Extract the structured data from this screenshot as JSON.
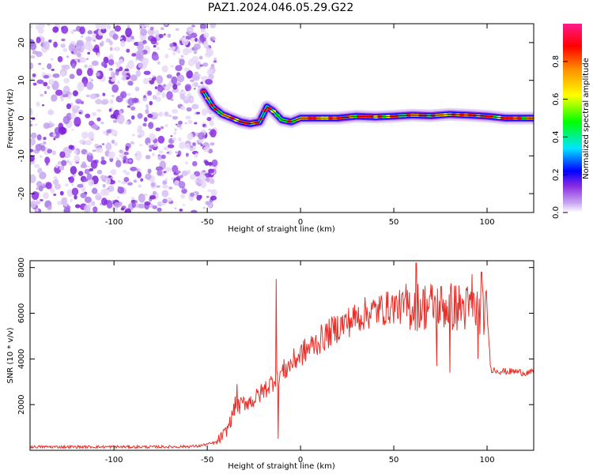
{
  "figure_title": "PAZ1.2024.046.05.29.G22",
  "chart_data": [
    {
      "type": "heatmap",
      "title": "",
      "xlabel": "Height of straight line (km)",
      "ylabel": "Frequency (Hz)",
      "xlim": [
        -145,
        125
      ],
      "ylim": [
        -25,
        25
      ],
      "xticks": [
        -100,
        -50,
        0,
        50,
        100
      ],
      "yticks": [
        -20,
        -10,
        0,
        10,
        20
      ],
      "colorbar": {
        "label": "Normalized spectral amplitude",
        "ticks": [
          0.0,
          0.2,
          0.4,
          0.6,
          0.8
        ],
        "range": [
          0,
          1
        ],
        "colormap": [
          "#ffffff",
          "#c9a7f0",
          "#8a2be2",
          "#0000ff",
          "#00e5ff",
          "#00ff00",
          "#ffff00",
          "#ff8c00",
          "#ff0000",
          "#ff1a8c"
        ]
      },
      "noise_region_x": [
        -145,
        -48
      ],
      "tonal_ridge": {
        "x": [
          -52,
          -47,
          -42,
          -37,
          -32,
          -27,
          -22,
          -18,
          -15,
          -10,
          -5,
          0,
          10,
          20,
          30,
          40,
          50,
          60,
          70,
          80,
          90,
          100,
          110,
          125
        ],
        "frequency_hz": [
          7,
          3,
          1,
          0,
          -1,
          -1.5,
          -1,
          3,
          2,
          -0.5,
          -1,
          0,
          0,
          0,
          0.5,
          0.3,
          0.5,
          0.8,
          0.6,
          1,
          0.8,
          0.5,
          0,
          0
        ]
      }
    },
    {
      "type": "line",
      "title": "",
      "xlabel": "Height of straight line (km)",
      "ylabel": "SNR (10 * v/v)",
      "xlim": [
        -145,
        125
      ],
      "ylim": [
        0,
        8300
      ],
      "xticks": [
        -100,
        -50,
        0,
        50,
        100
      ],
      "yticks": [
        2000,
        4000,
        6000,
        8000
      ],
      "color": "#e8302a",
      "profile": {
        "x": [
          -145,
          -110,
          -90,
          -70,
          -55,
          -45,
          -40,
          -37,
          -35,
          -33,
          -30,
          -25,
          -20,
          -15,
          -13,
          -10,
          -5,
          0,
          5,
          10,
          15,
          20,
          25,
          30,
          35,
          40,
          45,
          50,
          55,
          60,
          65,
          70,
          75,
          80,
          85,
          90,
          95,
          100,
          102,
          105,
          110,
          115,
          120,
          125
        ],
        "y": [
          150,
          150,
          150,
          150,
          180,
          350,
          800,
          1400,
          2000,
          1900,
          2100,
          2200,
          2600,
          3000,
          3300,
          3400,
          3800,
          4200,
          4500,
          4800,
          5100,
          5400,
          5600,
          5800,
          6000,
          6100,
          6200,
          6300,
          6250,
          6300,
          6300,
          6350,
          6300,
          6300,
          6250,
          6200,
          6200,
          6000,
          3550,
          3500,
          3450,
          3450,
          3400,
          3400
        ]
      },
      "spikes": [
        {
          "x": -34,
          "y": 2900
        },
        {
          "x": -13,
          "y": 7500
        },
        {
          "x": -12,
          "y": 500
        },
        {
          "x": 62,
          "y": 8200
        },
        {
          "x": 73,
          "y": 3700
        },
        {
          "x": 80,
          "y": 3400
        },
        {
          "x": 92,
          "y": 7700
        },
        {
          "x": 97,
          "y": 7800
        },
        {
          "x": 95,
          "y": 4000
        }
      ]
    }
  ]
}
